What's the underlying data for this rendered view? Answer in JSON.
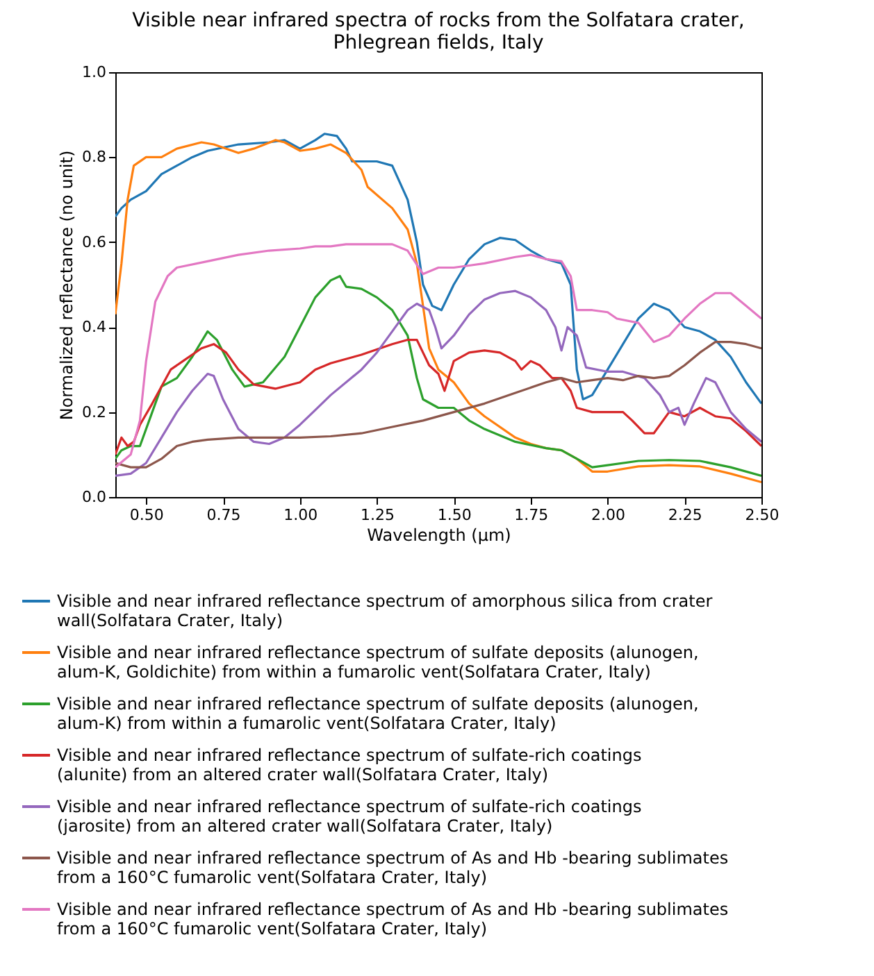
{
  "chart_data": {
    "type": "line",
    "title": "Visible near infrared spectra of rocks from the Solfatara crater, Phlegrean fields, Italy",
    "xlabel": "Wavelength (μm)",
    "ylabel": "Normalized reflectance (no unit)",
    "xlim": [
      0.4,
      2.5
    ],
    "ylim": [
      0,
      1
    ],
    "xticks": [
      {
        "value": 0.5,
        "label": "0.50"
      },
      {
        "value": 0.75,
        "label": "0.75"
      },
      {
        "value": 1.0,
        "label": "1.00"
      },
      {
        "value": 1.25,
        "label": "1.25"
      },
      {
        "value": 1.5,
        "label": "1.50"
      },
      {
        "value": 1.75,
        "label": "1.75"
      },
      {
        "value": 2.0,
        "label": "2.00"
      },
      {
        "value": 2.25,
        "label": "2.25"
      },
      {
        "value": 2.5,
        "label": "2.50"
      }
    ],
    "yticks": [
      {
        "value": 0,
        "label": "0.0"
      },
      {
        "value": 0.2,
        "label": "0.2"
      },
      {
        "value": 0.4,
        "label": "0.4"
      },
      {
        "value": 0.6,
        "label": "0.6"
      },
      {
        "value": 0.8,
        "label": "0.8"
      },
      {
        "value": 1,
        "label": "1.0"
      }
    ],
    "legend": "bottom",
    "line_style": "solid",
    "series": [
      {
        "name": "Visible and near infrared reflectance spectrum of amorphous silica from crater wall(Solfatara Crater, Italy)",
        "color": "#1f77b4",
        "x": [
          0.4,
          0.42,
          0.45,
          0.5,
          0.55,
          0.6,
          0.65,
          0.7,
          0.8,
          0.9,
          0.95,
          1.0,
          1.05,
          1.08,
          1.12,
          1.15,
          1.17,
          1.25,
          1.3,
          1.35,
          1.38,
          1.4,
          1.43,
          1.46,
          1.5,
          1.55,
          1.6,
          1.65,
          1.7,
          1.75,
          1.8,
          1.85,
          1.88,
          1.9,
          1.92,
          1.95,
          2.0,
          2.05,
          2.1,
          2.15,
          2.2,
          2.25,
          2.3,
          2.35,
          2.4,
          2.45,
          2.5
        ],
        "values": [
          0.66,
          0.68,
          0.7,
          0.72,
          0.76,
          0.78,
          0.8,
          0.815,
          0.83,
          0.835,
          0.84,
          0.82,
          0.84,
          0.855,
          0.85,
          0.82,
          0.79,
          0.79,
          0.78,
          0.7,
          0.6,
          0.5,
          0.45,
          0.44,
          0.5,
          0.56,
          0.595,
          0.61,
          0.605,
          0.58,
          0.56,
          0.55,
          0.5,
          0.3,
          0.23,
          0.24,
          0.3,
          0.36,
          0.42,
          0.455,
          0.44,
          0.4,
          0.39,
          0.37,
          0.33,
          0.27,
          0.22
        ]
      },
      {
        "name": "Visible and near infrared reflectance spectrum of sulfate deposits (alunogen, alum-K, Goldichite) from within a fumarolic vent(Solfatara Crater, Italy)",
        "color": "#ff7f0e",
        "x": [
          0.4,
          0.42,
          0.44,
          0.46,
          0.5,
          0.55,
          0.6,
          0.68,
          0.72,
          0.8,
          0.85,
          0.92,
          0.95,
          1.0,
          1.05,
          1.1,
          1.15,
          1.2,
          1.22,
          1.3,
          1.35,
          1.38,
          1.4,
          1.42,
          1.45,
          1.5,
          1.55,
          1.6,
          1.7,
          1.75,
          1.8,
          1.85,
          1.9,
          1.95,
          2.0,
          2.1,
          2.2,
          2.3,
          2.4,
          2.5
        ],
        "values": [
          0.43,
          0.55,
          0.7,
          0.78,
          0.8,
          0.8,
          0.82,
          0.835,
          0.83,
          0.81,
          0.82,
          0.84,
          0.835,
          0.815,
          0.82,
          0.83,
          0.81,
          0.77,
          0.73,
          0.68,
          0.63,
          0.55,
          0.45,
          0.35,
          0.3,
          0.27,
          0.22,
          0.19,
          0.14,
          0.125,
          0.115,
          0.11,
          0.09,
          0.06,
          0.06,
          0.072,
          0.075,
          0.072,
          0.055,
          0.035
        ]
      },
      {
        "name": "Visible and near infrared reflectance spectrum of sulfate deposits (alunogen, alum-K) from within a fumarolic vent(Solfatara Crater, Italy)",
        "color": "#2ca02c",
        "x": [
          0.4,
          0.42,
          0.45,
          0.48,
          0.52,
          0.55,
          0.6,
          0.65,
          0.7,
          0.73,
          0.78,
          0.82,
          0.88,
          0.95,
          1.0,
          1.05,
          1.1,
          1.13,
          1.15,
          1.2,
          1.25,
          1.3,
          1.35,
          1.38,
          1.4,
          1.45,
          1.5,
          1.55,
          1.6,
          1.7,
          1.8,
          1.85,
          1.9,
          1.95,
          2.0,
          2.1,
          2.2,
          2.3,
          2.4,
          2.5
        ],
        "values": [
          0.09,
          0.11,
          0.12,
          0.12,
          0.2,
          0.26,
          0.28,
          0.33,
          0.39,
          0.37,
          0.3,
          0.26,
          0.27,
          0.33,
          0.4,
          0.47,
          0.51,
          0.52,
          0.495,
          0.49,
          0.47,
          0.44,
          0.38,
          0.28,
          0.23,
          0.21,
          0.21,
          0.18,
          0.16,
          0.13,
          0.115,
          0.11,
          0.09,
          0.07,
          0.075,
          0.085,
          0.087,
          0.085,
          0.07,
          0.05
        ]
      },
      {
        "name": "Visible and near infrared reflectance spectrum of sulfate-rich coatings (alunite) from an altered crater wall(Solfatara Crater, Italy)",
        "color": "#d62728",
        "x": [
          0.4,
          0.42,
          0.44,
          0.46,
          0.48,
          0.52,
          0.58,
          0.62,
          0.68,
          0.72,
          0.76,
          0.8,
          0.85,
          0.92,
          1.0,
          1.05,
          1.1,
          1.2,
          1.3,
          1.35,
          1.38,
          1.4,
          1.42,
          1.45,
          1.47,
          1.5,
          1.55,
          1.6,
          1.65,
          1.7,
          1.72,
          1.75,
          1.78,
          1.82,
          1.85,
          1.88,
          1.9,
          1.95,
          2.0,
          2.05,
          2.08,
          2.12,
          2.15,
          2.2,
          2.25,
          2.3,
          2.35,
          2.4,
          2.45,
          2.5
        ],
        "values": [
          0.1,
          0.14,
          0.12,
          0.13,
          0.17,
          0.22,
          0.3,
          0.32,
          0.35,
          0.36,
          0.34,
          0.3,
          0.265,
          0.255,
          0.27,
          0.3,
          0.315,
          0.335,
          0.36,
          0.37,
          0.37,
          0.34,
          0.31,
          0.29,
          0.25,
          0.32,
          0.34,
          0.345,
          0.34,
          0.32,
          0.3,
          0.32,
          0.31,
          0.28,
          0.28,
          0.25,
          0.21,
          0.2,
          0.2,
          0.2,
          0.18,
          0.15,
          0.15,
          0.2,
          0.19,
          0.21,
          0.19,
          0.185,
          0.155,
          0.12
        ]
      },
      {
        "name": "Visible and near infrared reflectance spectrum of sulfate-rich coatings (jarosite) from an altered crater wall(Solfatara Crater, Italy)",
        "color": "#9467bd",
        "x": [
          0.4,
          0.45,
          0.5,
          0.55,
          0.6,
          0.65,
          0.7,
          0.72,
          0.75,
          0.8,
          0.85,
          0.9,
          0.95,
          1.0,
          1.05,
          1.1,
          1.2,
          1.25,
          1.3,
          1.35,
          1.38,
          1.42,
          1.44,
          1.46,
          1.5,
          1.55,
          1.6,
          1.65,
          1.7,
          1.75,
          1.8,
          1.83,
          1.85,
          1.87,
          1.9,
          1.93,
          2.0,
          2.05,
          2.12,
          2.17,
          2.2,
          2.23,
          2.25,
          2.28,
          2.32,
          2.35,
          2.4,
          2.45,
          2.5
        ],
        "values": [
          0.05,
          0.055,
          0.08,
          0.14,
          0.2,
          0.25,
          0.29,
          0.285,
          0.23,
          0.16,
          0.13,
          0.125,
          0.14,
          0.17,
          0.205,
          0.24,
          0.3,
          0.34,
          0.39,
          0.44,
          0.455,
          0.44,
          0.4,
          0.35,
          0.38,
          0.43,
          0.465,
          0.48,
          0.485,
          0.47,
          0.44,
          0.4,
          0.345,
          0.4,
          0.38,
          0.305,
          0.295,
          0.295,
          0.28,
          0.24,
          0.2,
          0.21,
          0.17,
          0.22,
          0.28,
          0.27,
          0.2,
          0.16,
          0.13
        ]
      },
      {
        "name": "Visible and near infrared reflectance spectrum of As and Hb -bearing sublimates from a 160°C fumarolic vent(Solfatara Crater, Italy)",
        "color": "#8c564b",
        "x": [
          0.4,
          0.45,
          0.5,
          0.55,
          0.6,
          0.65,
          0.7,
          0.8,
          0.9,
          1.0,
          1.1,
          1.2,
          1.3,
          1.4,
          1.5,
          1.6,
          1.7,
          1.8,
          1.85,
          1.9,
          1.95,
          2.0,
          2.05,
          2.1,
          2.15,
          2.2,
          2.25,
          2.3,
          2.35,
          2.4,
          2.45,
          2.5
        ],
        "values": [
          0.08,
          0.07,
          0.07,
          0.09,
          0.12,
          0.13,
          0.135,
          0.14,
          0.14,
          0.14,
          0.143,
          0.15,
          0.165,
          0.18,
          0.2,
          0.22,
          0.245,
          0.27,
          0.28,
          0.27,
          0.275,
          0.28,
          0.275,
          0.285,
          0.28,
          0.285,
          0.31,
          0.34,
          0.365,
          0.365,
          0.36,
          0.35
        ]
      },
      {
        "name": "Visible and near infrared reflectance spectrum of As and Hb -bearing sublimates from a 160°C fumarolic vent(Solfatara Crater, Italy)",
        "color": "#e377c2",
        "x": [
          0.4,
          0.45,
          0.48,
          0.5,
          0.53,
          0.57,
          0.6,
          0.7,
          0.8,
          0.9,
          1.0,
          1.05,
          1.1,
          1.15,
          1.25,
          1.3,
          1.35,
          1.4,
          1.45,
          1.5,
          1.55,
          1.6,
          1.7,
          1.75,
          1.8,
          1.85,
          1.88,
          1.9,
          1.95,
          2.0,
          2.03,
          2.1,
          2.15,
          2.2,
          2.25,
          2.3,
          2.35,
          2.4,
          2.45,
          2.5
        ],
        "values": [
          0.07,
          0.1,
          0.18,
          0.32,
          0.46,
          0.52,
          0.54,
          0.555,
          0.57,
          0.58,
          0.585,
          0.59,
          0.59,
          0.595,
          0.595,
          0.595,
          0.58,
          0.525,
          0.54,
          0.54,
          0.545,
          0.55,
          0.565,
          0.57,
          0.56,
          0.555,
          0.52,
          0.44,
          0.44,
          0.435,
          0.42,
          0.41,
          0.365,
          0.38,
          0.42,
          0.455,
          0.48,
          0.48,
          0.45,
          0.42
        ]
      }
    ]
  }
}
